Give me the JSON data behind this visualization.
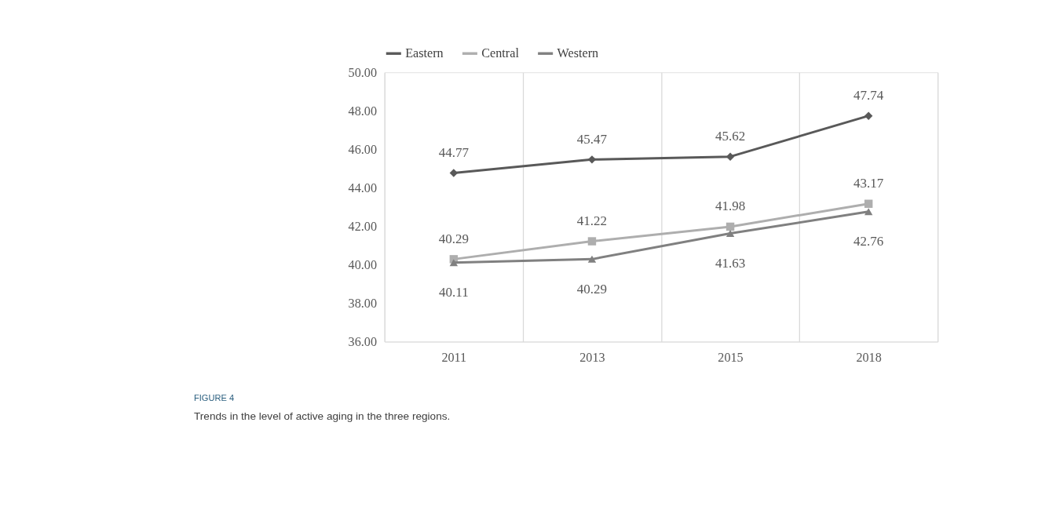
{
  "chart_data": {
    "type": "line",
    "categories": [
      "2011",
      "2013",
      "2015",
      "2018"
    ],
    "series": [
      {
        "name": "Eastern",
        "color": "#595959",
        "marker": "diamond",
        "values": [
          44.77,
          45.47,
          45.62,
          47.74
        ]
      },
      {
        "name": "Central",
        "color": "#aeaeae",
        "marker": "square",
        "values": [
          40.29,
          41.22,
          41.98,
          43.17
        ]
      },
      {
        "name": "Western",
        "color": "#808080",
        "marker": "triangle",
        "values": [
          40.11,
          40.29,
          41.63,
          42.76
        ]
      }
    ],
    "ylim": [
      36,
      50
    ],
    "yticks": [
      {
        "value": 36,
        "label": "36.00"
      },
      {
        "value": 38,
        "label": "38.00"
      },
      {
        "value": 40,
        "label": "40.00"
      },
      {
        "value": 42,
        "label": "42.00"
      },
      {
        "value": 44,
        "label": "44.00"
      },
      {
        "value": 46,
        "label": "46.00"
      },
      {
        "value": 48,
        "label": "48.00"
      },
      {
        "value": 50,
        "label": "50.00"
      }
    ],
    "grid": "x",
    "legend": "top",
    "data_labels": true,
    "line_style": "solid",
    "annotations": [
      "FIGURE 4",
      "Trends in the level of active aging in the three regions."
    ]
  }
}
